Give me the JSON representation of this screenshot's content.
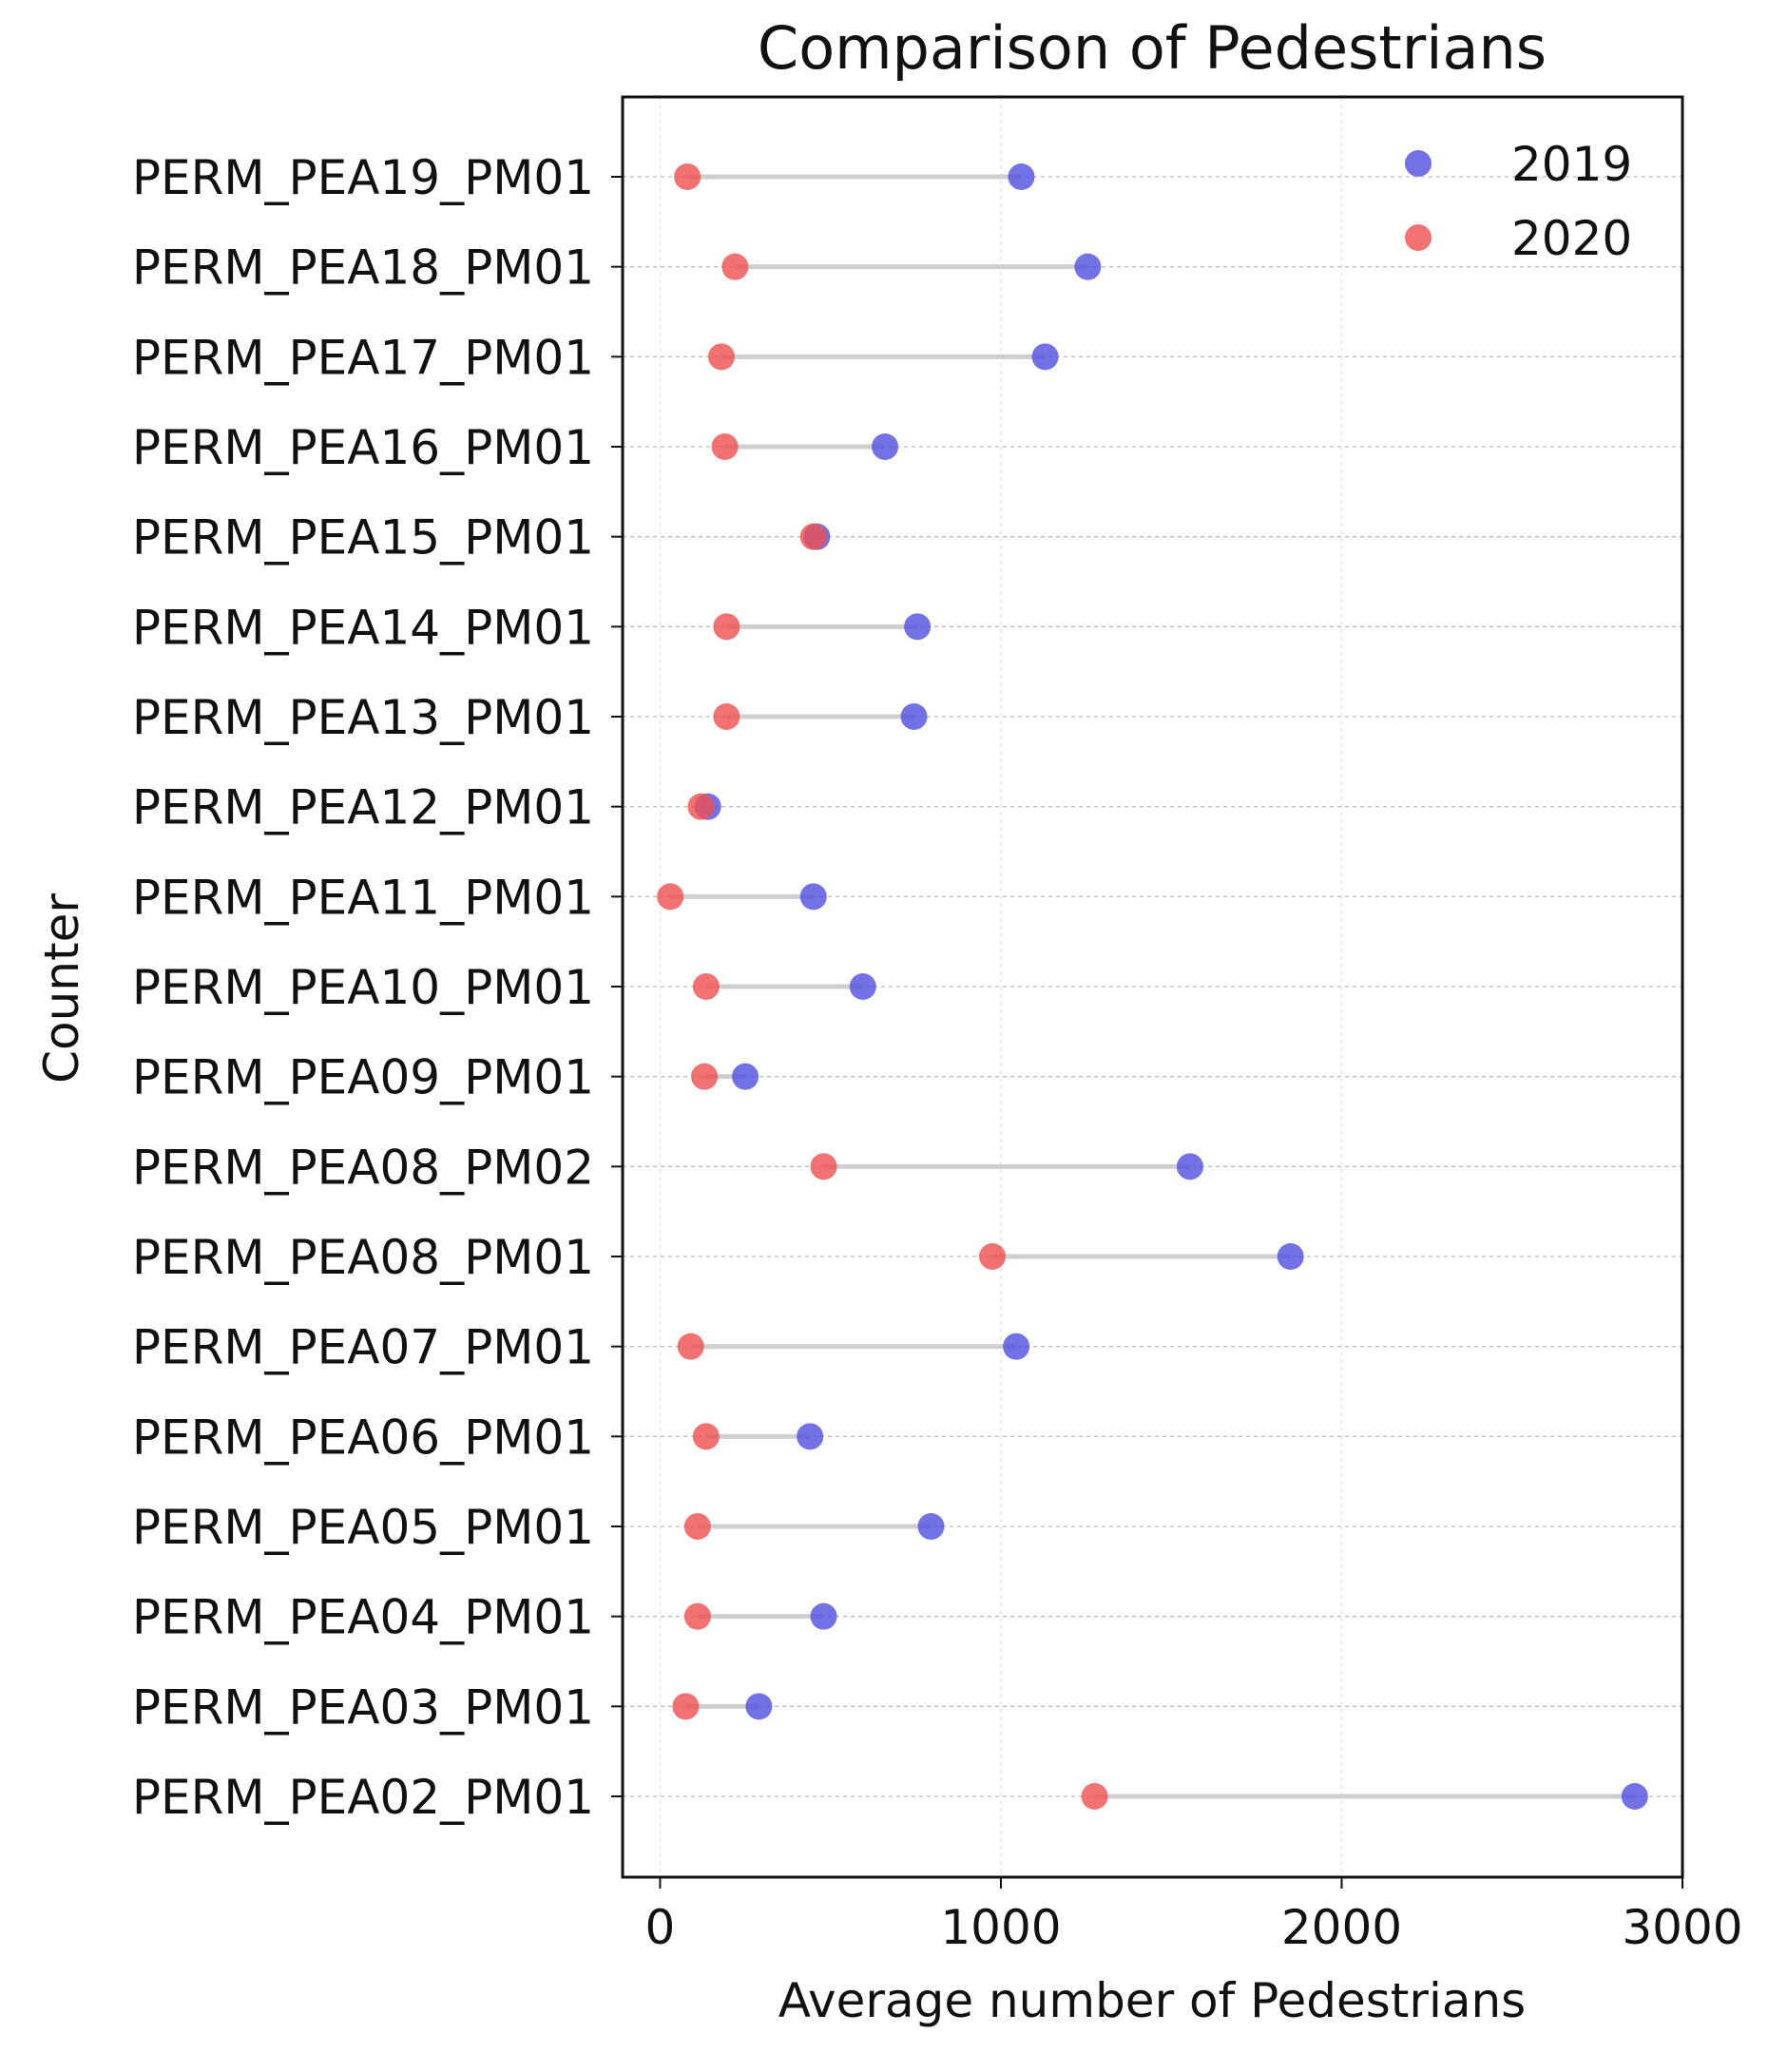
{
  "chart_data": {
    "type": "dumbbell",
    "title": "Comparison of Pedestrians",
    "xlabel": "Average number of Pedestrians",
    "ylabel": "Counter",
    "xlim": [
      -110,
      3000
    ],
    "x_ticks": [
      0,
      1000,
      2000,
      3000
    ],
    "grid": true,
    "legend_position": "top-right",
    "categories": [
      "PERM_PEA19_PM01",
      "PERM_PEA18_PM01",
      "PERM_PEA17_PM01",
      "PERM_PEA16_PM01",
      "PERM_PEA15_PM01",
      "PERM_PEA14_PM01",
      "PERM_PEA13_PM01",
      "PERM_PEA12_PM01",
      "PERM_PEA11_PM01",
      "PERM_PEA10_PM01",
      "PERM_PEA09_PM01",
      "PERM_PEA08_PM02",
      "PERM_PEA08_PM01",
      "PERM_PEA07_PM01",
      "PERM_PEA06_PM01",
      "PERM_PEA05_PM01",
      "PERM_PEA04_PM01",
      "PERM_PEA03_PM01",
      "PERM_PEA02_PM01"
    ],
    "series": [
      {
        "name": "2019",
        "color": "#4f4fe0",
        "values": [
          1060,
          1255,
          1130,
          660,
          460,
          755,
          745,
          140,
          450,
          595,
          250,
          1555,
          1850,
          1045,
          440,
          795,
          480,
          290,
          2860
        ]
      },
      {
        "name": "2020",
        "color": "#ef4f4f",
        "values": [
          80,
          220,
          180,
          190,
          450,
          195,
          195,
          120,
          30,
          135,
          130,
          480,
          975,
          90,
          135,
          110,
          110,
          75,
          1275
        ]
      }
    ],
    "connector_color": "#cfcfcf"
  }
}
